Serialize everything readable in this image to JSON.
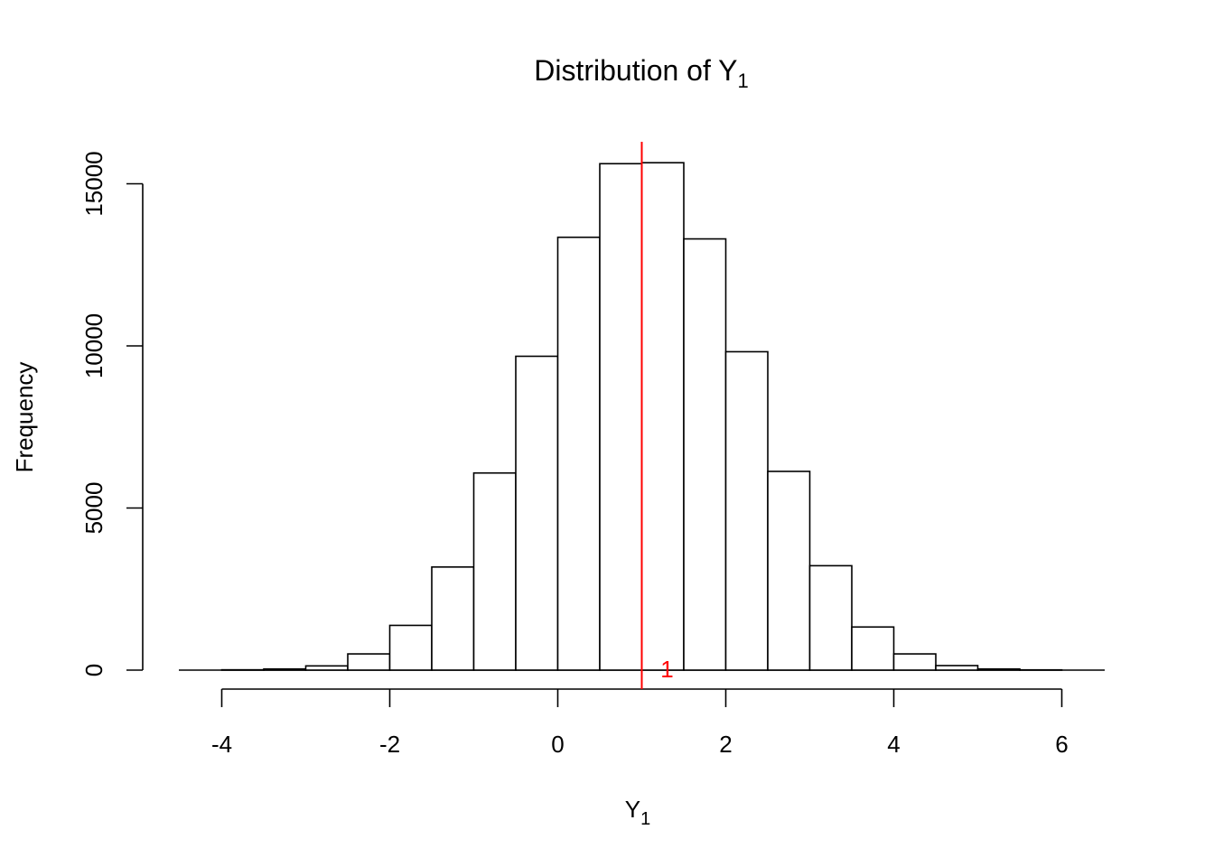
{
  "chart_data": {
    "type": "bar",
    "subtype": "histogram",
    "title": "Distribution of Y",
    "title_subscript": "1",
    "xlabel": "Y",
    "xlabel_subscript": "1",
    "ylabel": "Frequency",
    "xlim": [
      -4.5,
      6.5
    ],
    "ylim": [
      0,
      16000
    ],
    "x_ticks": [
      "-4",
      "-2",
      "0",
      "2",
      "4",
      "6"
    ],
    "y_ticks": [
      "0",
      "5000",
      "10000",
      "15000"
    ],
    "bin_width": 0.5,
    "bins": [
      {
        "start": -4.0,
        "end": -3.5,
        "count": 10
      },
      {
        "start": -3.5,
        "end": -3.0,
        "count": 35
      },
      {
        "start": -3.0,
        "end": -2.5,
        "count": 130
      },
      {
        "start": -2.5,
        "end": -2.0,
        "count": 500
      },
      {
        "start": -2.0,
        "end": -1.5,
        "count": 1380
      },
      {
        "start": -1.5,
        "end": -1.0,
        "count": 3180
      },
      {
        "start": -1.0,
        "end": -0.5,
        "count": 6080
      },
      {
        "start": -0.5,
        "end": 0.0,
        "count": 9680
      },
      {
        "start": 0.0,
        "end": 0.5,
        "count": 13350
      },
      {
        "start": 0.5,
        "end": 1.0,
        "count": 15620
      },
      {
        "start": 1.0,
        "end": 1.5,
        "count": 15650
      },
      {
        "start": 1.5,
        "end": 2.0,
        "count": 13300
      },
      {
        "start": 2.0,
        "end": 2.5,
        "count": 9820
      },
      {
        "start": 2.5,
        "end": 3.0,
        "count": 6130
      },
      {
        "start": 3.0,
        "end": 3.5,
        "count": 3220
      },
      {
        "start": 3.5,
        "end": 4.0,
        "count": 1330
      },
      {
        "start": 4.0,
        "end": 4.5,
        "count": 500
      },
      {
        "start": 4.5,
        "end": 5.0,
        "count": 140
      },
      {
        "start": 5.0,
        "end": 5.5,
        "count": 35
      },
      {
        "start": 5.5,
        "end": 6.0,
        "count": 8
      }
    ],
    "reference_line": {
      "x": 1,
      "label": "1",
      "color": "#ff0000"
    },
    "grid": false,
    "legend": "none"
  }
}
